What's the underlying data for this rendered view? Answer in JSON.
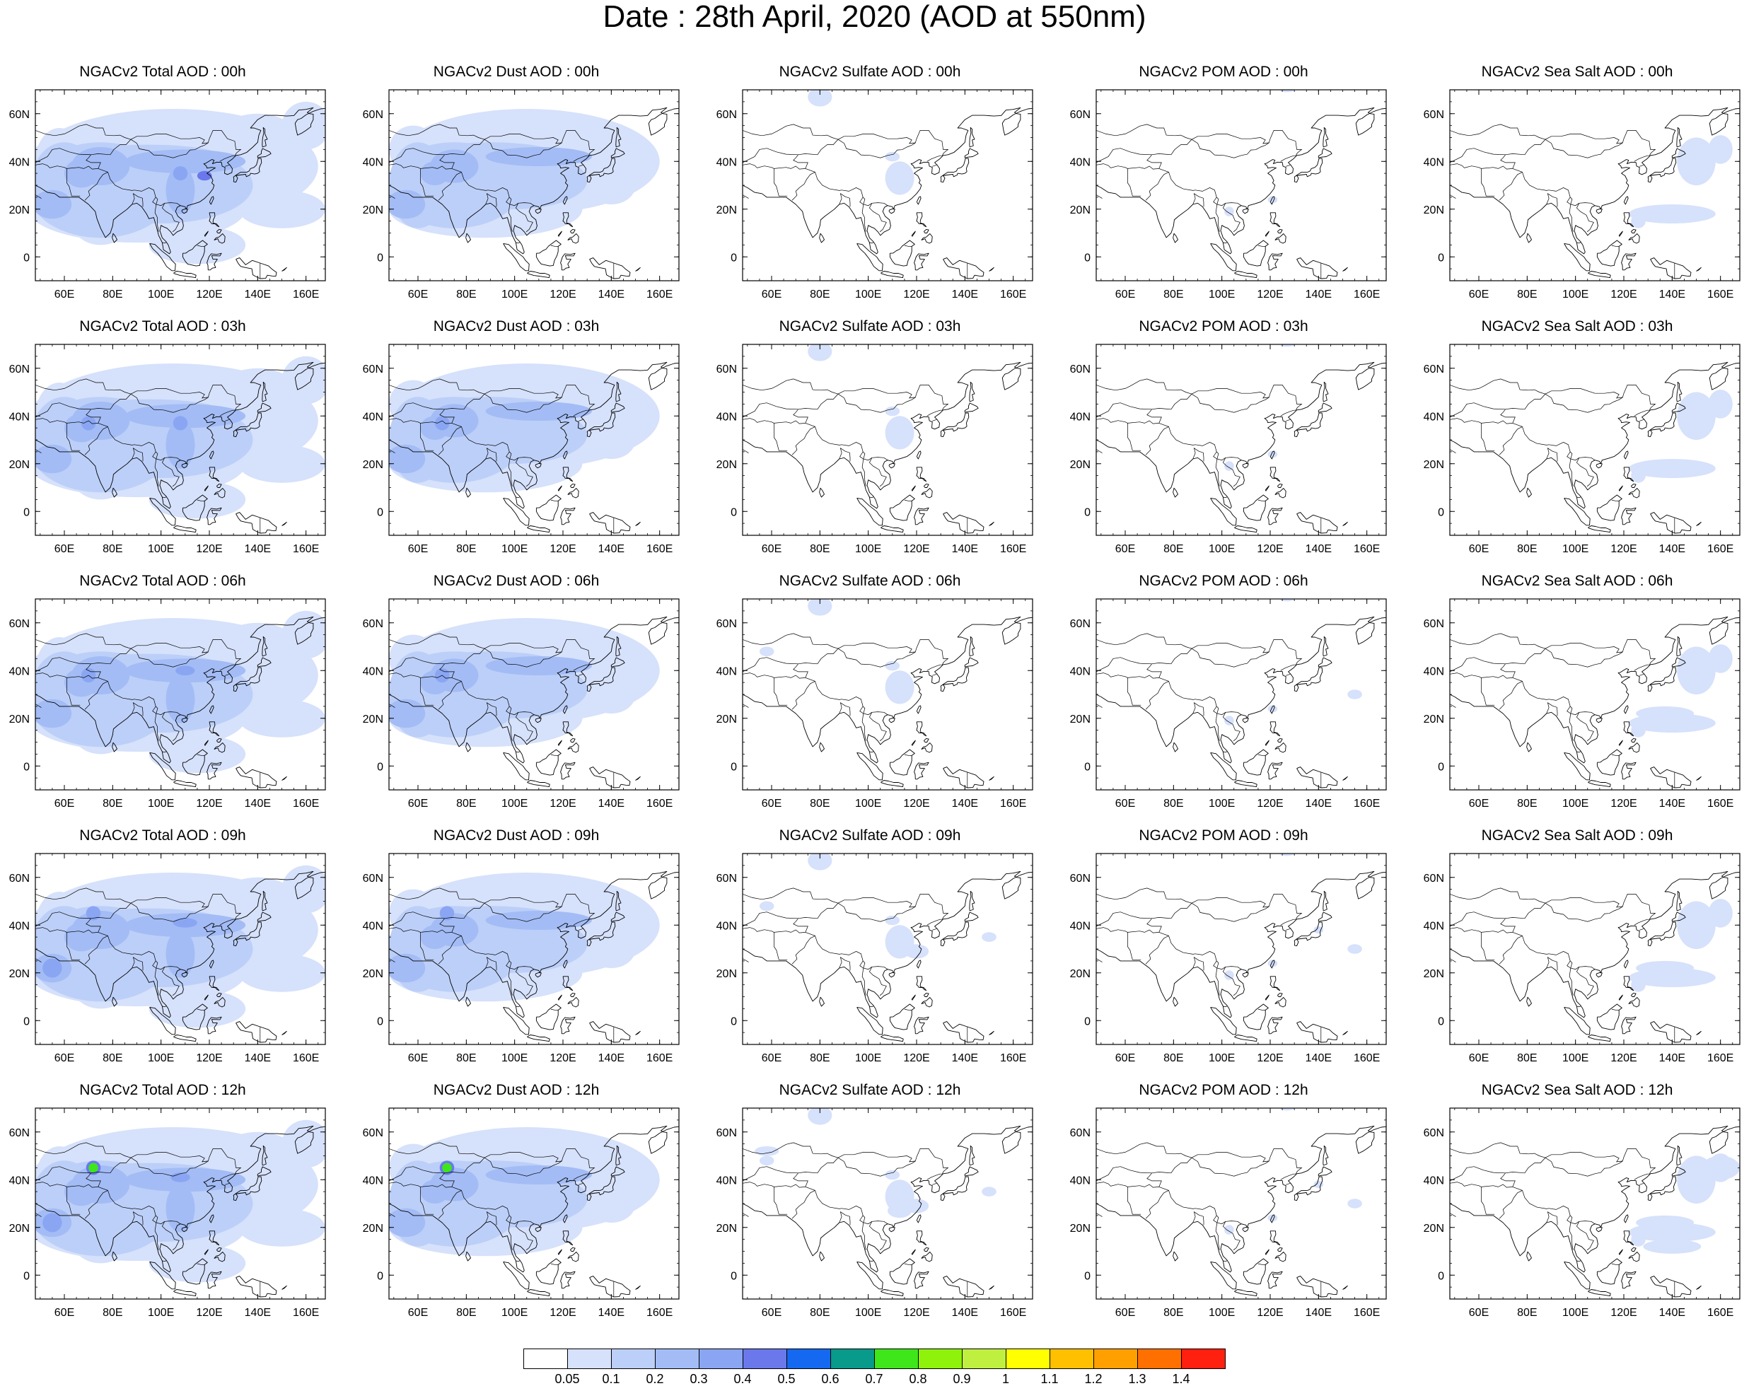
{
  "title": "Date : 28th April, 2020 (AOD at 550nm)",
  "columns": [
    "Total",
    "Dust",
    "Sulfate",
    "POM",
    "Sea Salt"
  ],
  "rows": [
    "00h",
    "03h",
    "06h",
    "09h",
    "12h"
  ],
  "panels": [
    [
      "NGACv2 Total AOD : 00h",
      "NGACv2 Dust AOD : 00h",
      "NGACv2 Sulfate AOD : 00h",
      "NGACv2 POM AOD : 00h",
      "NGACv2 Sea Salt AOD : 00h"
    ],
    [
      "NGACv2 Total AOD : 03h",
      "NGACv2 Dust AOD : 03h",
      "NGACv2 Sulfate AOD : 03h",
      "NGACv2 POM AOD : 03h",
      "NGACv2 Sea Salt AOD : 03h"
    ],
    [
      "NGACv2 Total AOD : 06h",
      "NGACv2 Dust AOD : 06h",
      "NGACv2 Sulfate AOD : 06h",
      "NGACv2 POM AOD : 06h",
      "NGACv2 Sea Salt AOD : 06h"
    ],
    [
      "NGACv2 Total AOD : 09h",
      "NGACv2 Dust AOD : 09h",
      "NGACv2 Sulfate AOD : 09h",
      "NGACv2 POM AOD : 09h",
      "NGACv2 Sea Salt  AOD : 09h"
    ],
    [
      "NGACv2 Total AOD  : 12h",
      "NGACv2 Dust AOD : 12h",
      "NGACv2 Sulfate AOD : 12h",
      "NGACv2 POM  AOD : 12h",
      "NGACv2 Sea Salt  AOD : 12h"
    ]
  ],
  "lat_ticks": [
    "60N",
    "40N",
    "20N",
    "0"
  ],
  "lat_values": [
    60,
    40,
    20,
    0
  ],
  "lon_ticks": [
    "60E",
    "80E",
    "100E",
    "120E",
    "140E",
    "160E"
  ],
  "lon_values": [
    60,
    80,
    100,
    120,
    140,
    160
  ],
  "lon_range": [
    48,
    168
  ],
  "lat_range": [
    -10,
    70
  ],
  "colorbar": {
    "labels": [
      "0.05",
      "0.1",
      "0.2",
      "0.3",
      "0.4",
      "0.5",
      "0.6",
      "0.7",
      "0.8",
      "0.9",
      "1",
      "1.1",
      "1.2",
      "1.3",
      "1.4"
    ],
    "colors": [
      "#ffffff",
      "#d6e1fb",
      "#bccff8",
      "#a3bcf5",
      "#8aa6f3",
      "#6a78ec",
      "#1569f0",
      "#089a8a",
      "#3ee61a",
      "#8ef20a",
      "#bff040",
      "#ffff00",
      "#ffc000",
      "#ffa000",
      "#ff7000",
      "#ff2010"
    ]
  }
}
